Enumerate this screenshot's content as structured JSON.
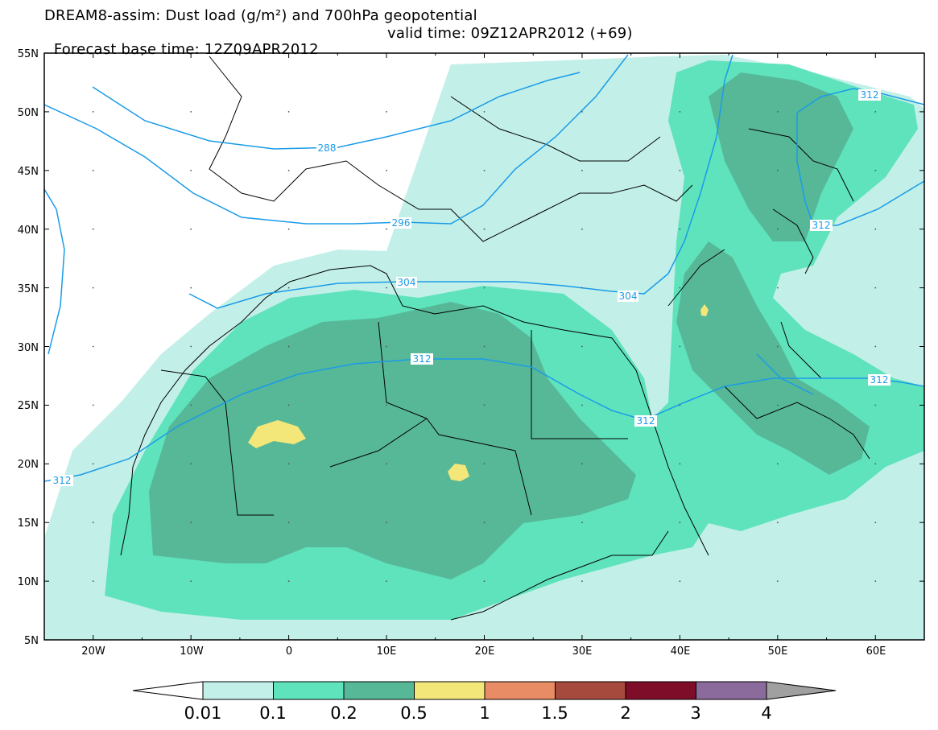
{
  "title_line1": "DREAM8-assim: Dust load (g/m²) and 700hPa geopotential",
  "title_line2a": "Forecast base time: 12Z09APR2012",
  "title_line2b": "valid time: 09Z12APR2012 (+69)",
  "map": {
    "lon_range": [
      -25,
      65
    ],
    "lat_range": [
      5,
      55
    ],
    "lat_ticks": [
      "55N",
      "50N",
      "45N",
      "40N",
      "35N",
      "30N",
      "25N",
      "20N",
      "15N",
      "10N",
      "5N"
    ],
    "lon_ticks": [
      "20W",
      "10W",
      "0",
      "10E",
      "20E",
      "30E",
      "40E",
      "50E",
      "60E"
    ],
    "contour_color": "#1a9be8",
    "contour_labels": [
      "288",
      "296",
      "304",
      "304",
      "312",
      "312",
      "312",
      "312",
      "312",
      "312"
    ]
  },
  "colorbar": {
    "labels": [
      "0.01",
      "0.1",
      "0.2",
      "0.5",
      "1",
      "1.5",
      "2",
      "3",
      "4"
    ],
    "colors": [
      "#c2f0e8",
      "#5fe3bd",
      "#57b897",
      "#f3e77a",
      "#e88c66",
      "#a64a3e",
      "#7e0d2a",
      "#8b6a9c"
    ],
    "under_color": "#ffffff",
    "over_color": "#a0a0a0"
  }
}
